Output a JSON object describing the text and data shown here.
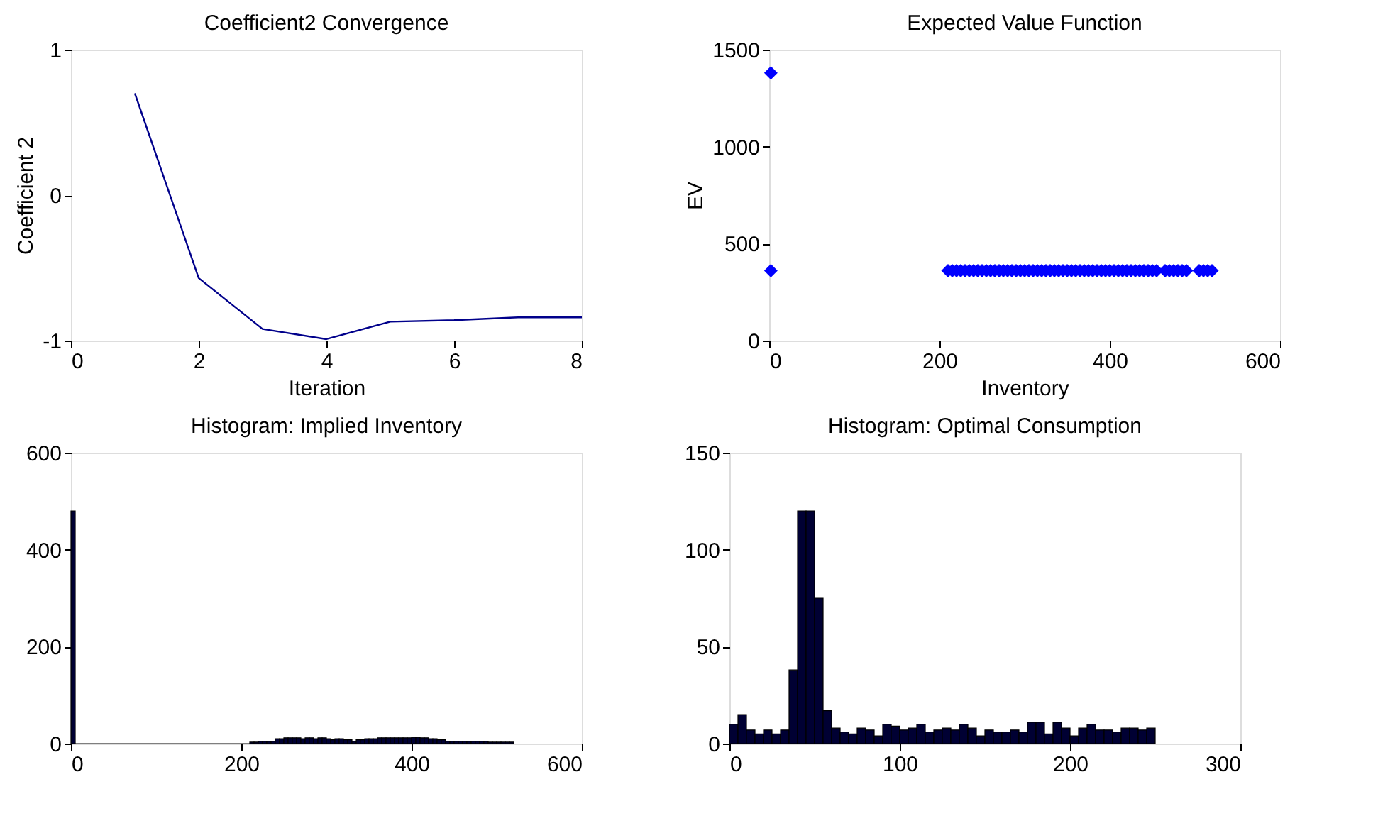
{
  "chart_data": [
    {
      "type": "line",
      "title": "Coefficient2 Convergence",
      "xlabel": "Iteration",
      "ylabel": "Coefficient 2",
      "x": [
        1,
        2,
        3,
        4,
        5,
        6,
        7,
        8
      ],
      "series": [
        {
          "color": "#00008b",
          "values": [
            0.7,
            -0.57,
            -0.92,
            -0.99,
            -0.87,
            -0.86,
            -0.84,
            -0.84
          ]
        }
      ],
      "xlim": [
        0,
        8
      ],
      "xticks": [
        0,
        2,
        4,
        6,
        8
      ],
      "ylim": [
        -1,
        1
      ],
      "yticks": [
        -1,
        0,
        1
      ],
      "grid": false,
      "marker": "none",
      "line_style": "solid"
    },
    {
      "type": "scatter",
      "title": "Expected Value Function",
      "xlabel": "Inventory",
      "ylabel": "EV",
      "x": [
        2,
        2,
        210,
        215,
        220,
        225,
        230,
        235,
        240,
        245,
        250,
        255,
        260,
        265,
        270,
        275,
        280,
        285,
        290,
        295,
        300,
        305,
        310,
        315,
        320,
        325,
        330,
        335,
        340,
        345,
        350,
        355,
        360,
        365,
        370,
        375,
        380,
        385,
        390,
        395,
        400,
        405,
        410,
        415,
        420,
        425,
        430,
        435,
        440,
        445,
        450,
        455,
        465,
        470,
        475,
        480,
        485,
        490,
        505,
        510,
        515,
        520
      ],
      "series": [
        {
          "color": "#0000ff",
          "values": [
            1380,
            360,
            360,
            360,
            360,
            360,
            360,
            360,
            360,
            360,
            360,
            360,
            360,
            360,
            360,
            360,
            360,
            360,
            360,
            360,
            360,
            360,
            360,
            360,
            360,
            360,
            360,
            360,
            360,
            360,
            360,
            360,
            360,
            360,
            360,
            360,
            360,
            360,
            360,
            360,
            360,
            360,
            360,
            360,
            360,
            360,
            360,
            360,
            360,
            360,
            360,
            360,
            360,
            360,
            360,
            360,
            360,
            360,
            360,
            360,
            360,
            360
          ]
        }
      ],
      "xlim": [
        0,
        600
      ],
      "xticks": [
        0,
        200,
        400,
        600
      ],
      "ylim": [
        0,
        1500
      ],
      "yticks": [
        0,
        500,
        1000,
        1500
      ],
      "grid": false,
      "marker": "diamond"
    },
    {
      "type": "histogram",
      "title": "Histogram: Implied Inventory",
      "color": "#000033",
      "bins": [
        0,
        5,
        210,
        215,
        220,
        225,
        230,
        235,
        240,
        245,
        250,
        255,
        260,
        265,
        270,
        275,
        280,
        285,
        290,
        295,
        300,
        305,
        310,
        315,
        320,
        325,
        330,
        335,
        340,
        345,
        350,
        355,
        360,
        365,
        370,
        375,
        380,
        385,
        390,
        395,
        400,
        405,
        410,
        415,
        420,
        425,
        430,
        435,
        440,
        445,
        450,
        455,
        460,
        465,
        470,
        475,
        480,
        485,
        490,
        495,
        500,
        505,
        510,
        515,
        520
      ],
      "values": [
        480,
        0,
        3,
        3,
        5,
        5,
        5,
        5,
        10,
        10,
        12,
        12,
        12,
        12,
        10,
        12,
        12,
        10,
        12,
        12,
        10,
        8,
        10,
        10,
        8,
        8,
        5,
        8,
        8,
        10,
        10,
        10,
        12,
        12,
        12,
        12,
        12,
        12,
        12,
        12,
        13,
        13,
        12,
        12,
        10,
        10,
        8,
        8,
        5,
        5,
        5,
        5,
        5,
        5,
        5,
        5,
        5,
        5,
        3,
        3,
        3,
        3,
        3,
        3
      ],
      "xlim": [
        0,
        600
      ],
      "xticks": [
        0,
        200,
        400,
        600
      ],
      "ylim": [
        0,
        600
      ],
      "yticks": [
        0,
        200,
        400,
        600
      ],
      "grid": false
    },
    {
      "type": "histogram",
      "title": "Histogram: Optimal Consumption",
      "color": "#000033",
      "bins": [
        0,
        5,
        10,
        15,
        20,
        25,
        30,
        35,
        40,
        45,
        50,
        55,
        60,
        65,
        70,
        75,
        80,
        85,
        90,
        95,
        100,
        105,
        110,
        115,
        120,
        125,
        130,
        135,
        140,
        145,
        150,
        155,
        160,
        165,
        170,
        175,
        180,
        185,
        190,
        195,
        200,
        205,
        210,
        215,
        220,
        225,
        230,
        235,
        240,
        245,
        250
      ],
      "values": [
        10,
        15,
        7,
        5,
        7,
        5,
        7,
        38,
        120,
        120,
        75,
        17,
        8,
        6,
        5,
        8,
        7,
        4,
        10,
        9,
        7,
        8,
        10,
        6,
        7,
        8,
        7,
        10,
        8,
        4,
        7,
        6,
        6,
        7,
        6,
        11,
        11,
        5,
        11,
        8,
        4,
        8,
        10,
        7,
        7,
        6,
        8,
        8,
        7,
        8
      ],
      "xlim": [
        0,
        300
      ],
      "xticks": [
        0,
        100,
        200,
        300
      ],
      "ylim": [
        0,
        150
      ],
      "yticks": [
        0,
        50,
        100,
        150
      ],
      "grid": false
    }
  ]
}
